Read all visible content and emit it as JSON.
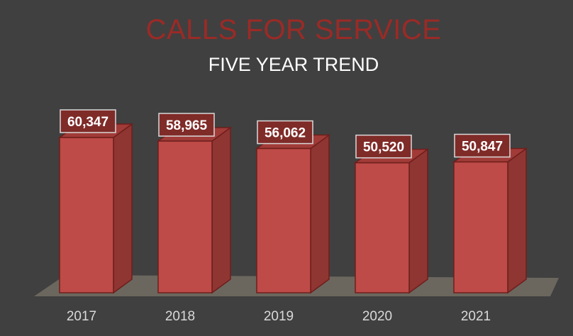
{
  "chart_data": {
    "type": "bar",
    "title": "CALLS FOR SERVICE",
    "subtitle": "FIVE YEAR TREND",
    "categories": [
      "2017",
      "2018",
      "2019",
      "2020",
      "2021"
    ],
    "values": [
      60347,
      58965,
      56062,
      50520,
      50847
    ],
    "data_labels": [
      "60,347",
      "58,965",
      "56,062",
      "50,520",
      "50,847"
    ],
    "style": "3d-column",
    "grid": false,
    "legend": "none",
    "colors": {
      "background": "#404040",
      "bar_front": "#be4b48",
      "bar_side": "#8f3532",
      "bar_top": "#a13b38",
      "bar_edge": "#6e1f1c",
      "floor": "#6b675e",
      "title": "#9b2a26",
      "subtitle": "#ffffff",
      "label_box": "#7f2b28",
      "label_border": "#d9d9d9",
      "tick_text": "#d9d9d9"
    }
  }
}
